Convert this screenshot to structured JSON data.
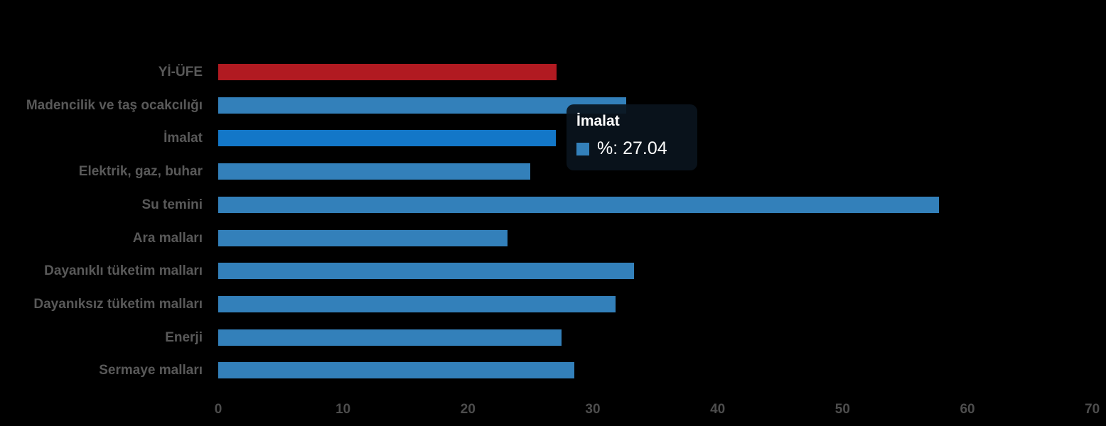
{
  "colors": {
    "background": "#000000",
    "bar_default": "#3380ba",
    "bar_highlight": "#1377c8",
    "bar_emphasis": "#b11a21",
    "category_label_text": "#595959",
    "axis_tick_text": "#4d4d4d",
    "tooltip_background": "rgba(10,19,29,0.93)",
    "tooltip_text": "#ffffff"
  },
  "chart_data": {
    "type": "bar",
    "orientation": "horizontal",
    "title": "",
    "xlabel": "",
    "ylabel": "",
    "grid": false,
    "legend": "none",
    "xlim": [
      0,
      70
    ],
    "x_ticks": [
      0,
      10,
      20,
      30,
      40,
      50,
      60,
      70
    ],
    "categories": [
      "Yİ-ÜFE",
      "Madencilik ve taş ocakcılığı",
      "İmalat",
      "Elektrik, gaz, buhar",
      "Su temini",
      "Ara malları",
      "Dayanıklı tüketim malları",
      "Dayanıksız tüketim malları",
      "Enerji",
      "Sermaye malları"
    ],
    "values": [
      27.09,
      32.67,
      27.04,
      24.97,
      57.74,
      23.15,
      33.28,
      31.82,
      27.49,
      28.51
    ],
    "bar_colors": [
      "#b11a21",
      "#3380ba",
      "#1377c8",
      "#3380ba",
      "#3380ba",
      "#3380ba",
      "#3380ba",
      "#3380ba",
      "#3380ba",
      "#3380ba"
    ],
    "highlighted_category": "İmalat"
  },
  "tooltip": {
    "title": "İmalat",
    "label": "%: 27.04",
    "swatch_color": "#3380ba"
  }
}
